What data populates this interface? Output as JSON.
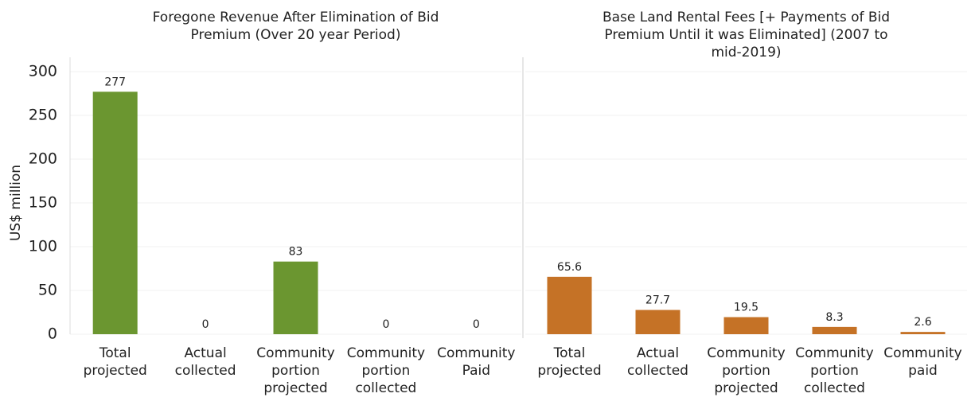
{
  "chart_data": [
    {
      "type": "bar",
      "title": "Foregone Revenue After Elimination of Bid Premium (Over 20 year Period)",
      "y_label": "US$ million",
      "categories": [
        "Total projected",
        "Actual collected",
        "Community portion projected",
        "Community portion collected",
        "Community Paid"
      ],
      "values": [
        277,
        0,
        83,
        0,
        0
      ],
      "color": "#6b9630",
      "ylim": [
        0,
        300
      ],
      "yticks": [
        0,
        50,
        100,
        150,
        200,
        250,
        300
      ],
      "grid": true
    },
    {
      "type": "bar",
      "title": "Base Land Rental Fees [+ Payments of Bid Premium Until it was Eliminated] (2007 to mid-2019)",
      "categories": [
        "Total projected",
        "Actual collected",
        "Community portion projected",
        "Community portion collected",
        "Community paid"
      ],
      "values": [
        65.6,
        27.7,
        19.5,
        8.3,
        2.6
      ],
      "color": "#c57226",
      "ylim": [
        0,
        300
      ],
      "yticks": [
        0,
        50,
        100,
        150,
        200,
        250,
        300
      ],
      "grid": true
    }
  ]
}
